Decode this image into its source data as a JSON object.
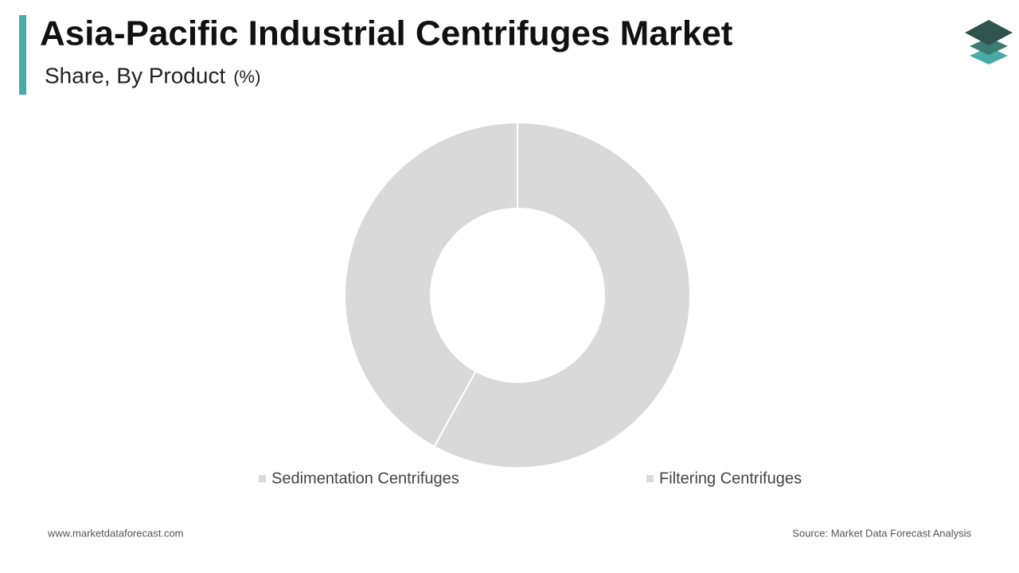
{
  "chart_data": {
    "type": "pie",
    "title": "Asia-Pacific Industrial Centrifuges Market",
    "subtitle": "Share, By Product",
    "unit": "(%)",
    "categories": [
      "Sedimentation Centrifuges",
      "Filtering Centrifuges"
    ],
    "values": [
      58,
      42
    ],
    "colors": [
      "#d9d9d9",
      "#d9d9d9"
    ],
    "donut": true,
    "footer_left": "www.marketdataforecast.com",
    "footer_right": "Source: Market Data Forecast Analysis"
  }
}
